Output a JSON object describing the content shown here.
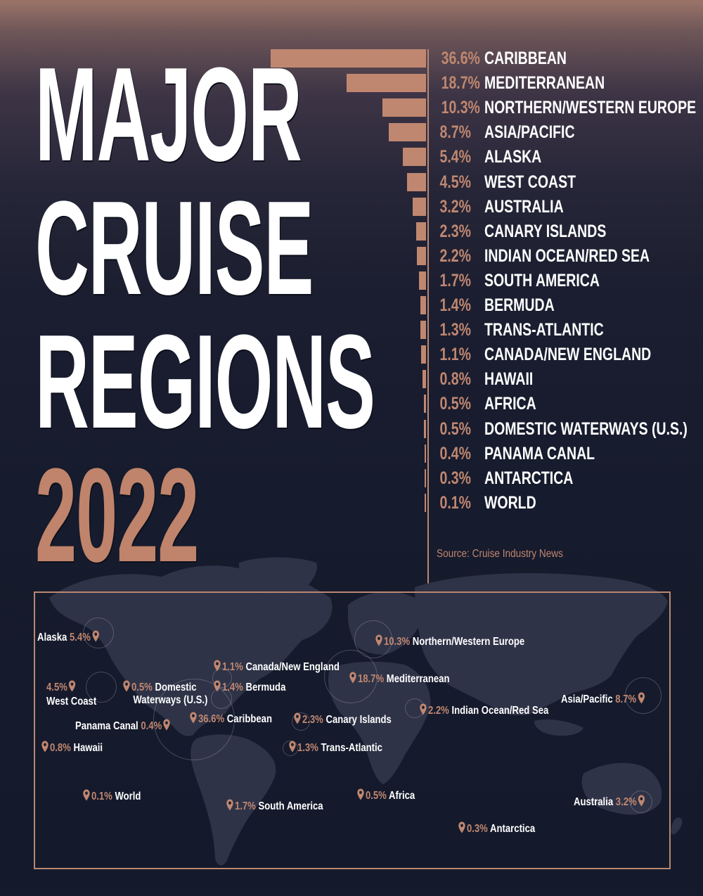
{
  "title": {
    "line1": "MAJOR",
    "line2": "CRUISE",
    "line3": "REGIONS",
    "year": "2022"
  },
  "colors": {
    "accent": "#c08770",
    "background_dark": "#141a2b",
    "background_top": "#9b7468",
    "text": "#ffffff",
    "land": "#2f3347"
  },
  "source": "Source: Cruise Industry News",
  "chart_data": {
    "type": "bar",
    "orientation": "horizontal",
    "title": "Major Cruise Regions 2022",
    "xlabel": "",
    "ylabel": "",
    "unit": "%",
    "categories": [
      "CARIBBEAN",
      "MEDITERRANEAN",
      "NORTHERN/WESTERN EUROPE",
      "ASIA/PACIFIC",
      "ALASKA",
      "WEST COAST",
      "AUSTRALIA",
      "CANARY ISLANDS",
      "INDIAN OCEAN/RED SEA",
      "SOUTH AMERICA",
      "BERMUDA",
      "TRANS-ATLANTIC",
      "CANADA/NEW ENGLAND",
      "HAWAII",
      "AFRICA",
      "DOMESTIC WATERWAYS (U.S.)",
      "PANAMA CANAL",
      "ANTARCTICA",
      "WORLD"
    ],
    "values": [
      36.6,
      18.7,
      10.3,
      8.7,
      5.4,
      4.5,
      3.2,
      2.3,
      2.2,
      1.7,
      1.4,
      1.3,
      1.1,
      0.8,
      0.5,
      0.5,
      0.4,
      0.3,
      0.1
    ],
    "value_labels": [
      "36.6%",
      "18.7%",
      "10.3%",
      "8.7%",
      "5.4%",
      "4.5%",
      "3.2%",
      "2.3%",
      "2.2%",
      "1.7%",
      "1.4%",
      "1.3%",
      "1.1%",
      "0.8%",
      "0.5%",
      "0.5%",
      "0.4%",
      "0.3%",
      "0.1%"
    ],
    "grid": false,
    "legend": "none",
    "source": "Cruise Industry News"
  },
  "map": {
    "markers": [
      {
        "name": "Alaska",
        "pct": "5.4%"
      },
      {
        "name": "West Coast",
        "pct": "4.5%"
      },
      {
        "name": "Domestic",
        "name2": "Waterways (U.S.)",
        "pct": "0.5%"
      },
      {
        "name": "Canada/New England",
        "pct": "1.1%"
      },
      {
        "name": "Bermuda",
        "pct": "1.4%"
      },
      {
        "name": "Caribbean",
        "pct": "36.6%"
      },
      {
        "name": "Panama Canal",
        "pct": "0.4%"
      },
      {
        "name": "Hawaii",
        "pct": "0.8%"
      },
      {
        "name": "Northern/Western Europe",
        "pct": "10.3%"
      },
      {
        "name": "Mediterranean",
        "pct": "18.7%"
      },
      {
        "name": "Canary Islands",
        "pct": "2.3%"
      },
      {
        "name": "Trans-Atlantic",
        "pct": "1.3%"
      },
      {
        "name": "Indian Ocean/Red Sea",
        "pct": "2.2%"
      },
      {
        "name": "Asia/Pacific",
        "pct": "8.7%"
      },
      {
        "name": "World",
        "pct": "0.1%"
      },
      {
        "name": "South America",
        "pct": "1.7%"
      },
      {
        "name": "Africa",
        "pct": "0.5%"
      },
      {
        "name": "Antarctica",
        "pct": "0.3%"
      },
      {
        "name": "Australia",
        "pct": "3.2%"
      }
    ]
  }
}
